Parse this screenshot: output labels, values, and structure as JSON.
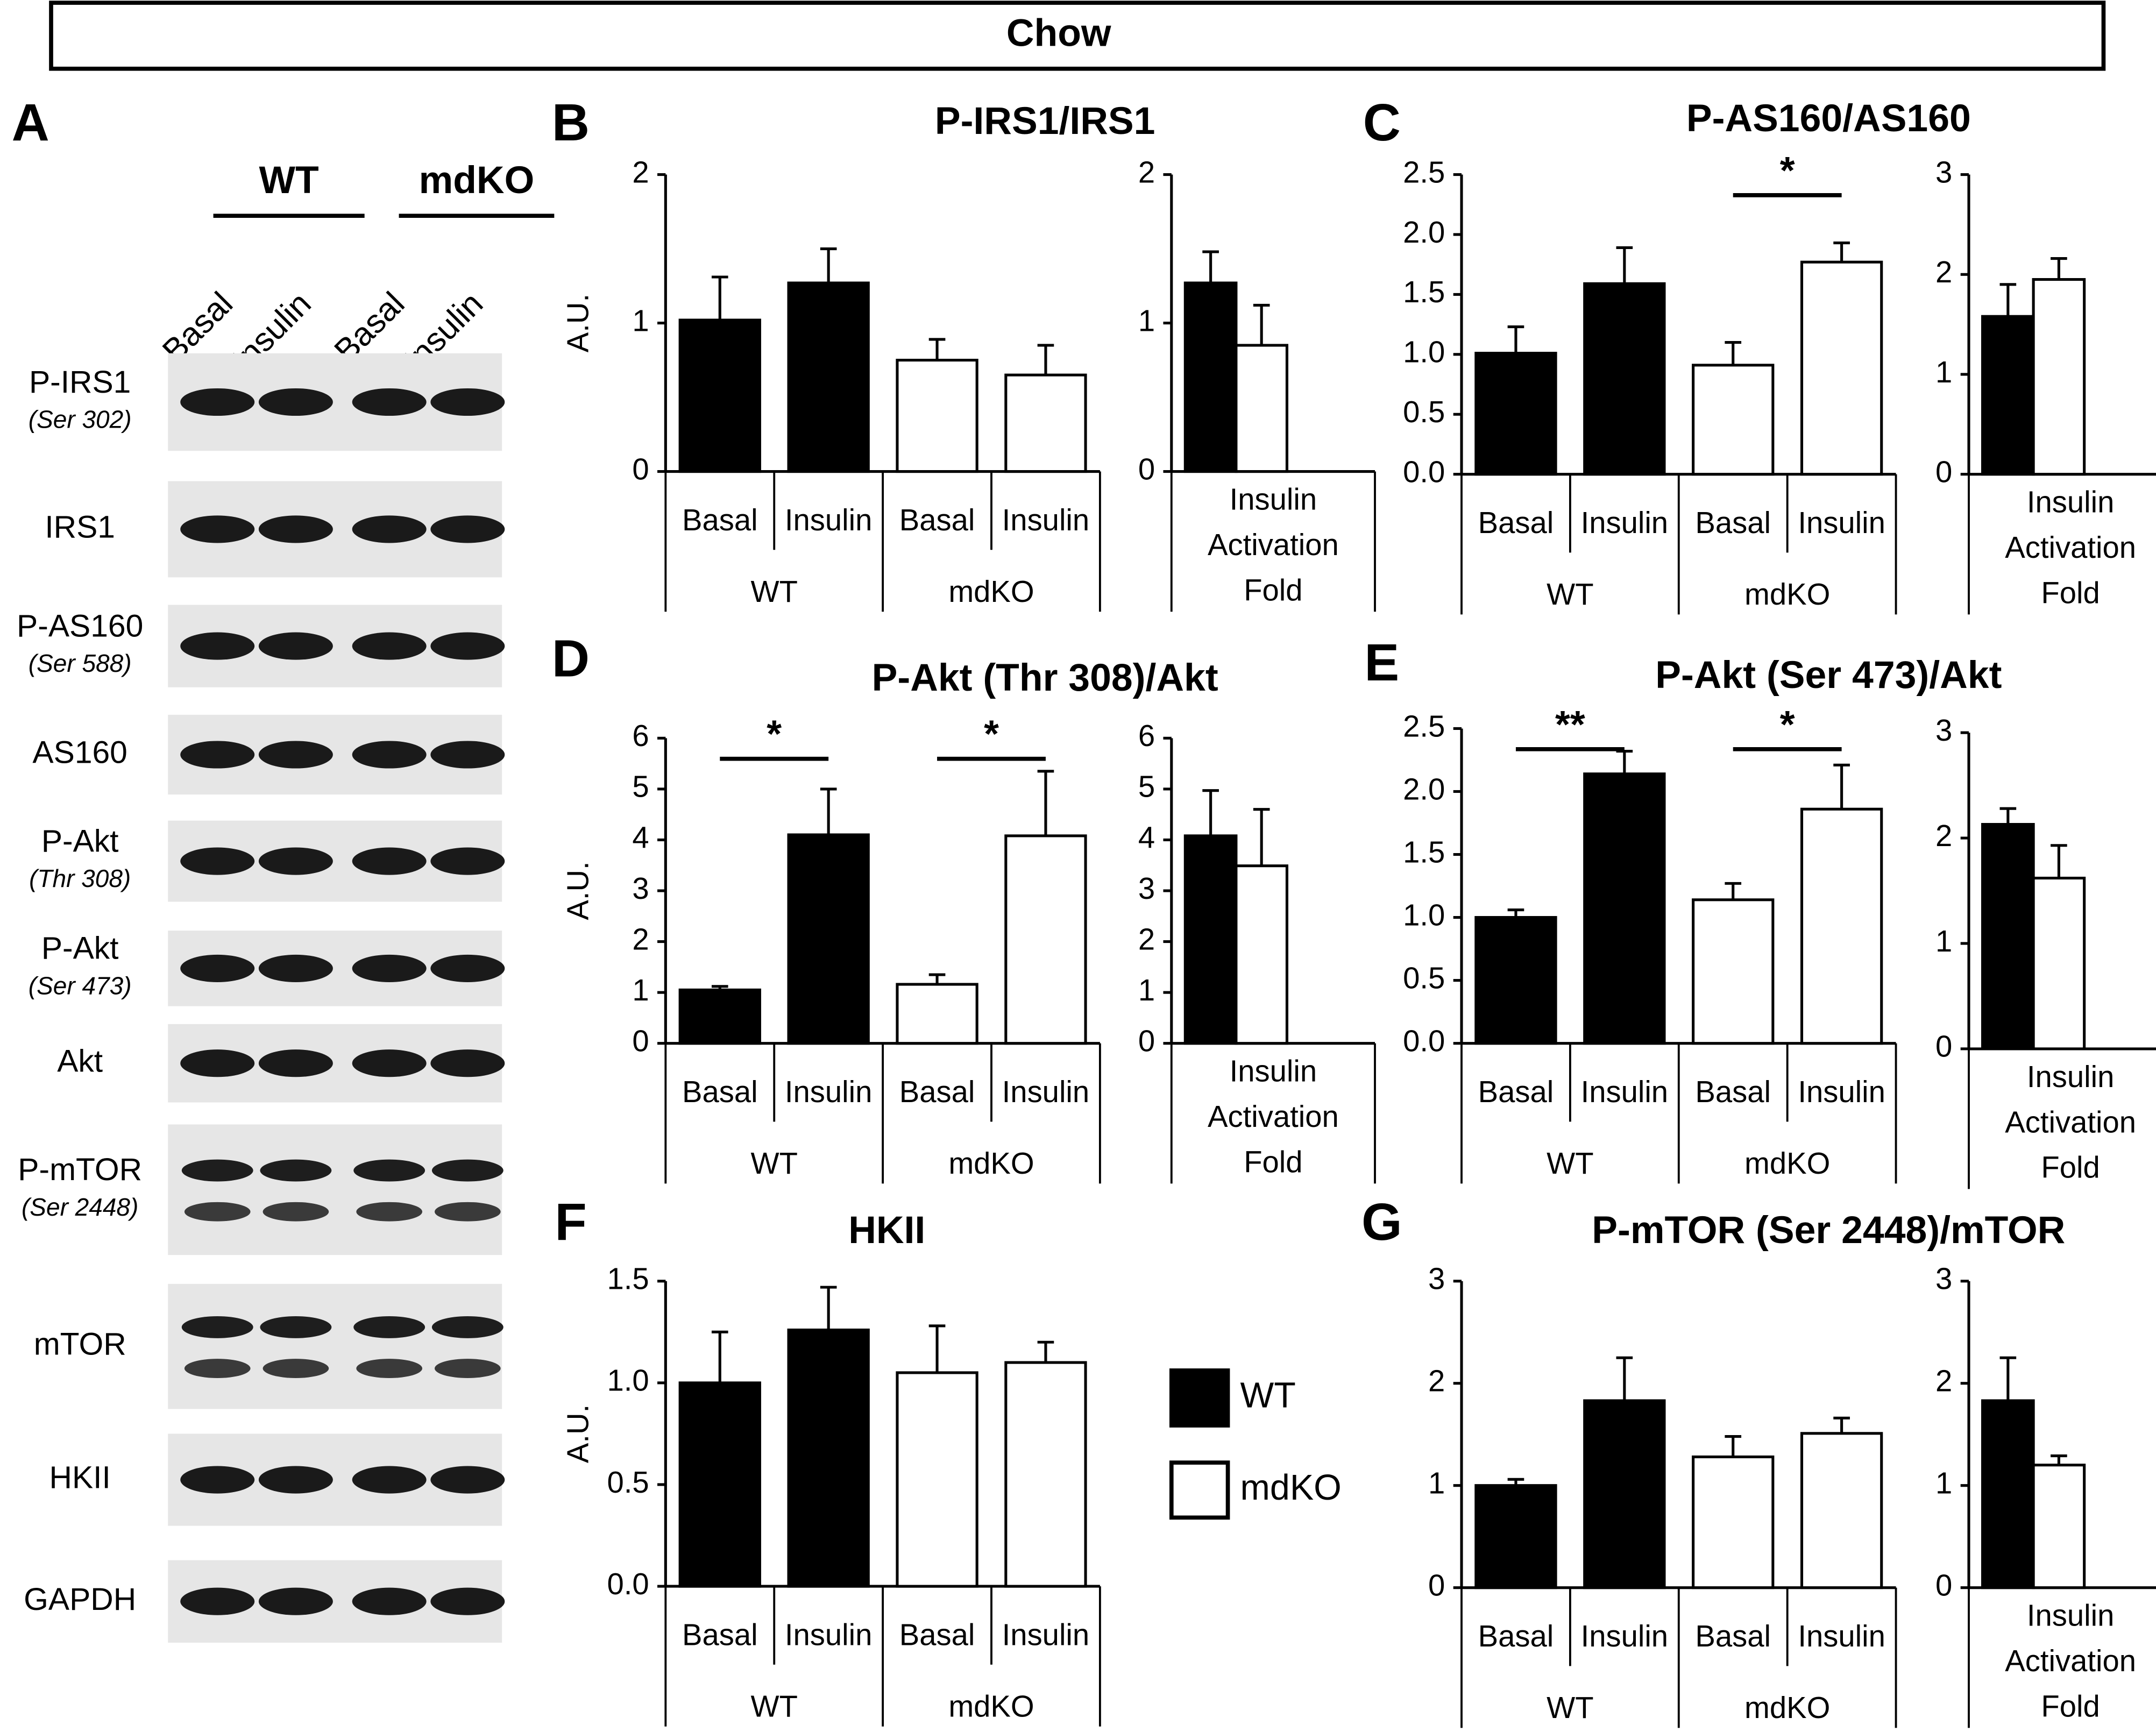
{
  "header": {
    "title": "Chow"
  },
  "blot": {
    "panel": "A",
    "groups": [
      {
        "name": "WT",
        "conditions": [
          "Basal",
          "Insulin"
        ]
      },
      {
        "name": "mdKO",
        "conditions": [
          "Basal",
          "Insulin"
        ]
      }
    ],
    "rows": [
      {
        "label": "P-IRS1",
        "site": "(Ser 302)"
      },
      {
        "label": "IRS1"
      },
      {
        "label": "P-AS160",
        "site": "(Ser 588)"
      },
      {
        "label": "AS160"
      },
      {
        "label": "P-Akt",
        "site": "(Thr 308)"
      },
      {
        "label": "P-Akt",
        "site": "(Ser 473)"
      },
      {
        "label": "Akt"
      },
      {
        "label": "P-mTOR",
        "site": "(Ser 2448)"
      },
      {
        "label": "mTOR"
      },
      {
        "label": "HKII"
      },
      {
        "label": "GAPDH"
      }
    ]
  },
  "chart_data": [
    {
      "panel": "B",
      "type": "bar",
      "title": "P-IRS1/IRS1",
      "ylabel": "A.U.",
      "ylim": [
        0,
        2
      ],
      "yticks": [
        0,
        1,
        2
      ],
      "groups": [
        {
          "name": "WT",
          "color": "#000000",
          "categories": [
            "Basal",
            "Insulin"
          ],
          "values": [
            1.02,
            1.27
          ],
          "errors": [
            0.29,
            0.23
          ]
        },
        {
          "name": "mdKO",
          "color": "#ffffff",
          "categories": [
            "Basal",
            "Insulin"
          ],
          "values": [
            0.75,
            0.65
          ],
          "errors": [
            0.14,
            0.2
          ]
        }
      ],
      "fold": {
        "xlabel": [
          "Insulin",
          "Activation",
          "Fold"
        ],
        "ylim": [
          0,
          2
        ],
        "yticks": [
          0,
          1,
          2
        ],
        "colors": [
          "#000000",
          "#ffffff"
        ],
        "values": [
          1.27,
          0.85
        ],
        "errors": [
          0.21,
          0.27
        ]
      }
    },
    {
      "panel": "C",
      "type": "bar",
      "title": "P-AS160/AS160",
      "ylim": [
        0,
        2.5
      ],
      "yticks": [
        {
          "value": 0,
          "label": "0.0"
        },
        0.5,
        {
          "value": 1,
          "label": "1.0"
        },
        1.5,
        {
          "value": 2,
          "label": "2.0"
        },
        2.5
      ],
      "groups": [
        {
          "name": "WT",
          "color": "#000000",
          "categories": [
            "Basal",
            "Insulin"
          ],
          "values": [
            1.01,
            1.59
          ],
          "errors": [
            0.22,
            0.3
          ]
        },
        {
          "name": "mdKO",
          "color": "#ffffff",
          "categories": [
            "Basal",
            "Insulin"
          ],
          "values": [
            0.91,
            1.77
          ],
          "errors": [
            0.19,
            0.16
          ]
        }
      ],
      "significance": [
        null,
        "*"
      ],
      "fold": {
        "xlabel": [
          "Insulin",
          "Activation",
          "Fold"
        ],
        "ylim": [
          0,
          3
        ],
        "yticks": [
          0,
          1,
          2,
          3
        ],
        "colors": [
          "#000000",
          "#ffffff"
        ],
        "values": [
          1.58,
          1.95
        ],
        "errors": [
          0.32,
          0.21
        ]
      }
    },
    {
      "panel": "D",
      "type": "bar",
      "title": "P-Akt (Thr 308)/Akt",
      "ylabel": "A.U.",
      "ylim": [
        0,
        6
      ],
      "yticks": [
        0,
        1,
        2,
        3,
        4,
        5,
        6
      ],
      "groups": [
        {
          "name": "WT",
          "color": "#000000",
          "categories": [
            "Basal",
            "Insulin"
          ],
          "values": [
            1.05,
            4.1
          ],
          "errors": [
            0.07,
            0.9
          ]
        },
        {
          "name": "mdKO",
          "color": "#ffffff",
          "categories": [
            "Basal",
            "Insulin"
          ],
          "values": [
            1.16,
            4.08
          ],
          "errors": [
            0.19,
            1.27
          ]
        }
      ],
      "significance": [
        "*",
        "*"
      ],
      "fold": {
        "xlabel": [
          "Insulin",
          "Activation",
          "Fold"
        ],
        "ylim": [
          0,
          6
        ],
        "yticks": [
          0,
          1,
          2,
          3,
          4,
          5,
          6
        ],
        "colors": [
          "#000000",
          "#ffffff"
        ],
        "values": [
          4.08,
          3.49
        ],
        "errors": [
          0.89,
          1.11
        ]
      }
    },
    {
      "panel": "E",
      "type": "bar",
      "title": "P-Akt (Ser 473)/Akt",
      "ylim": [
        0,
        2.5
      ],
      "yticks": [
        {
          "value": 0,
          "label": "0.0"
        },
        0.5,
        {
          "value": 1,
          "label": "1.0"
        },
        1.5,
        {
          "value": 2,
          "label": "2.0"
        },
        2.5
      ],
      "groups": [
        {
          "name": "WT",
          "color": "#000000",
          "categories": [
            "Basal",
            "Insulin"
          ],
          "values": [
            1.0,
            2.14
          ],
          "errors": [
            0.06,
            0.18
          ]
        },
        {
          "name": "mdKO",
          "color": "#ffffff",
          "categories": [
            "Basal",
            "Insulin"
          ],
          "values": [
            1.14,
            1.86
          ],
          "errors": [
            0.13,
            0.35
          ]
        }
      ],
      "significance": [
        "**",
        "*"
      ],
      "fold": {
        "xlabel": [
          "Insulin",
          "Activation",
          "Fold"
        ],
        "ylim": [
          0,
          3
        ],
        "yticks": [
          0,
          1,
          2,
          3
        ],
        "colors": [
          "#000000",
          "#ffffff"
        ],
        "values": [
          2.13,
          1.62
        ],
        "errors": [
          0.15,
          0.31
        ]
      }
    },
    {
      "panel": "F",
      "type": "bar",
      "title": "HKII",
      "ylabel": "A.U.",
      "legend": "right",
      "ylim": [
        0,
        1.5
      ],
      "yticks": [
        {
          "value": 0,
          "label": "0.0"
        },
        0.5,
        {
          "value": 1,
          "label": "1.0"
        },
        1.5
      ],
      "groups": [
        {
          "name": "WT",
          "color": "#000000",
          "categories": [
            "Basal",
            "Insulin"
          ],
          "values": [
            1.0,
            1.26
          ],
          "errors": [
            0.25,
            0.21
          ]
        },
        {
          "name": "mdKO",
          "color": "#ffffff",
          "categories": [
            "Basal",
            "Insulin"
          ],
          "values": [
            1.05,
            1.1
          ],
          "errors": [
            0.23,
            0.1
          ]
        }
      ]
    },
    {
      "panel": "G",
      "type": "bar",
      "title": "P-mTOR (Ser 2448)/mTOR",
      "ylim": [
        0,
        3
      ],
      "yticks": [
        0,
        1,
        2,
        3
      ],
      "groups": [
        {
          "name": "WT",
          "color": "#000000",
          "categories": [
            "Basal",
            "Insulin"
          ],
          "values": [
            1.0,
            1.83
          ],
          "errors": [
            0.06,
            0.42
          ]
        },
        {
          "name": "mdKO",
          "color": "#ffffff",
          "categories": [
            "Basal",
            "Insulin"
          ],
          "values": [
            1.28,
            1.51
          ],
          "errors": [
            0.2,
            0.15
          ]
        }
      ],
      "fold": {
        "xlabel": [
          "Insulin",
          "Activation",
          "Fold"
        ],
        "ylim": [
          0,
          3
        ],
        "yticks": [
          0,
          1,
          2,
          3
        ],
        "colors": [
          "#000000",
          "#ffffff"
        ],
        "values": [
          1.83,
          1.2
        ],
        "errors": [
          0.42,
          0.09
        ]
      }
    }
  ]
}
